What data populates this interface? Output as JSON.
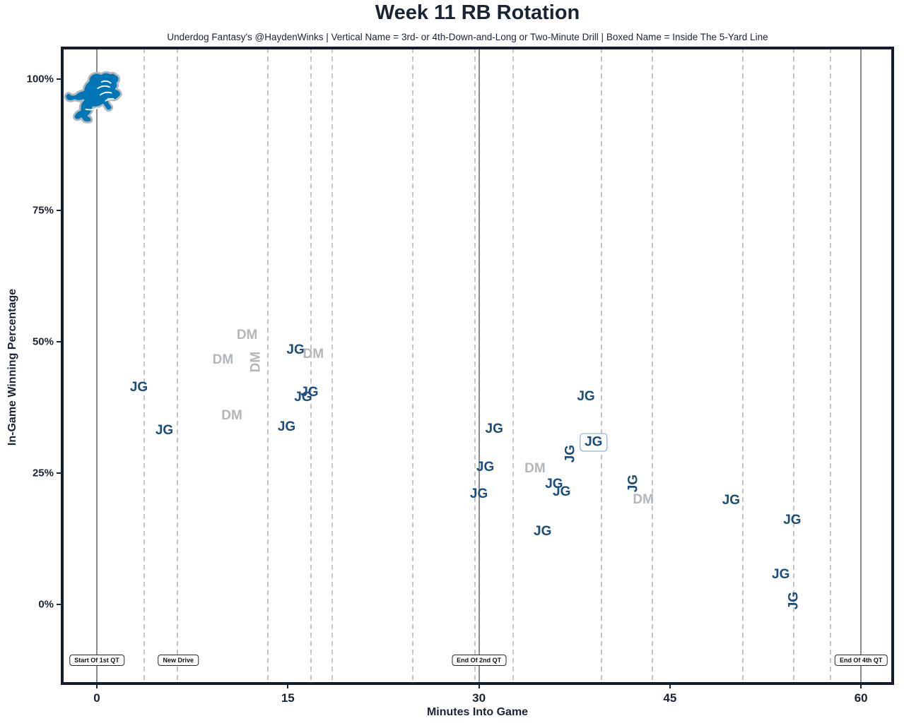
{
  "header": {
    "title": "Week 11 RB Rotation",
    "subtitle": "Underdog Fantasy's @HaydenWinks | Vertical Name = 3rd- or 4th-Down-and-Long or Two-Minute Drill | Boxed Name = Inside The 5-Yard Line"
  },
  "axes": {
    "x_label": "Minutes Into Game",
    "y_label": "In-Game Winning Percentage",
    "x_ticks": [
      {
        "value": 0,
        "label": "0"
      },
      {
        "value": 15,
        "label": "15"
      },
      {
        "value": 30,
        "label": "30"
      },
      {
        "value": 45,
        "label": "45"
      },
      {
        "value": 60,
        "label": "60"
      }
    ],
    "y_ticks": [
      {
        "value": 100,
        "label": "100%"
      },
      {
        "value": 75,
        "label": "75%"
      },
      {
        "value": 50,
        "label": "50%"
      },
      {
        "value": 25,
        "label": "25%"
      },
      {
        "value": 0,
        "label": "0%"
      }
    ]
  },
  "colors": {
    "jg": "#1a4c7d",
    "dm": "#b2b7bc",
    "border": "#151d2c",
    "solid_line": "#8d8d8d",
    "dashed_line": "#c4c6c8",
    "logo_blue": "#0076b6",
    "logo_silver": "#b0b7bc"
  },
  "team_logo": "detroit-lions",
  "chart_data": {
    "type": "scatter",
    "title": "Week 11 RB Rotation",
    "xlabel": "Minutes Into Game",
    "ylabel": "In-Game Winning Percentage",
    "xlim": [
      -2.7,
      62.5
    ],
    "ylim": [
      -15,
      106
    ],
    "grid": "vertical-only",
    "solid_vlines_minutes": [
      0,
      30,
      60
    ],
    "dashed_vlines_minutes": [
      3.7,
      6.3,
      13.4,
      16.8,
      18.5,
      24.8,
      29.7,
      32.7,
      39.6,
      43.6,
      50.7,
      54.7,
      57.6
    ],
    "annotations": [
      {
        "label": "Start Of 1st QT",
        "x": 0
      },
      {
        "label": "New Drive",
        "x": 6.4
      },
      {
        "label": "End Of 2nd QT",
        "x": 30
      },
      {
        "label": "End Of 4th QT",
        "x": 60
      }
    ],
    "series": [
      {
        "name": "JG",
        "color": "#1a4c7d",
        "points": [
          {
            "x": 3.3,
            "y": 41.3,
            "style": "normal"
          },
          {
            "x": 5.3,
            "y": 33.1,
            "style": "normal"
          },
          {
            "x": 14.9,
            "y": 33.7,
            "style": "normal"
          },
          {
            "x": 15.6,
            "y": 48.4,
            "style": "normal"
          },
          {
            "x": 16.2,
            "y": 39.4,
            "style": "normal"
          },
          {
            "x": 16.7,
            "y": 40.3,
            "style": "normal"
          },
          {
            "x": 30.0,
            "y": 21.0,
            "style": "normal"
          },
          {
            "x": 30.5,
            "y": 26.1,
            "style": "normal"
          },
          {
            "x": 31.2,
            "y": 33.3,
            "style": "normal"
          },
          {
            "x": 35.0,
            "y": 13.8,
            "style": "normal"
          },
          {
            "x": 35.9,
            "y": 22.8,
            "style": "normal"
          },
          {
            "x": 36.5,
            "y": 21.4,
            "style": "normal"
          },
          {
            "x": 37.2,
            "y": 28.6,
            "style": "vertical"
          },
          {
            "x": 38.4,
            "y": 39.5,
            "style": "normal"
          },
          {
            "x": 39.0,
            "y": 30.8,
            "style": "boxed"
          },
          {
            "x": 42.1,
            "y": 23.0,
            "style": "vertical"
          },
          {
            "x": 49.8,
            "y": 19.8,
            "style": "normal"
          },
          {
            "x": 53.7,
            "y": 5.6,
            "style": "normal"
          },
          {
            "x": 54.6,
            "y": 16.0,
            "style": "normal"
          },
          {
            "x": 54.7,
            "y": 0.7,
            "style": "vertical"
          }
        ]
      },
      {
        "name": "DM",
        "color": "#b2b7bc",
        "points": [
          {
            "x": 9.9,
            "y": 46.5,
            "style": "normal"
          },
          {
            "x": 10.6,
            "y": 35.9,
            "style": "normal"
          },
          {
            "x": 11.8,
            "y": 51.2,
            "style": "normal"
          },
          {
            "x": 12.5,
            "y": 46.1,
            "style": "vertical"
          },
          {
            "x": 17.0,
            "y": 47.6,
            "style": "normal"
          },
          {
            "x": 34.4,
            "y": 25.8,
            "style": "normal"
          },
          {
            "x": 42.9,
            "y": 19.9,
            "style": "normal"
          }
        ]
      }
    ]
  }
}
